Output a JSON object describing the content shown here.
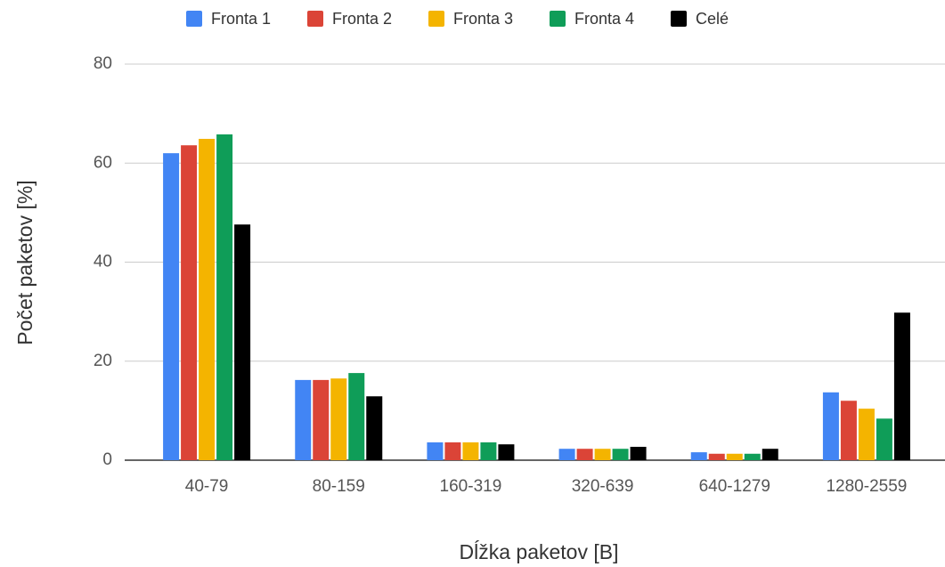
{
  "chart_data": {
    "type": "bar",
    "categories": [
      "40-79",
      "80-159",
      "160-319",
      "320-639",
      "640-1279",
      "1280-2559"
    ],
    "series": [
      {
        "name": "Fronta 1",
        "color": "#4285f4",
        "values": [
          62.0,
          16.2,
          3.6,
          2.3,
          1.6,
          13.7
        ]
      },
      {
        "name": "Fronta 2",
        "color": "#db4437",
        "values": [
          63.6,
          16.2,
          3.6,
          2.3,
          1.3,
          12.0
        ]
      },
      {
        "name": "Fronta 3",
        "color": "#f4b400",
        "values": [
          64.9,
          16.5,
          3.6,
          2.3,
          1.3,
          10.4
        ]
      },
      {
        "name": "Fronta 4",
        "color": "#0f9d58",
        "values": [
          65.8,
          17.6,
          3.6,
          2.3,
          1.3,
          8.4
        ]
      },
      {
        "name": "Celé",
        "color": "#000000",
        "values": [
          47.6,
          12.9,
          3.2,
          2.7,
          2.3,
          29.8
        ]
      }
    ],
    "x_label": "Dĺžka paketov [B]",
    "y_label": "Počet paketov [%]",
    "ylim": [
      0,
      80
    ],
    "yticks": [
      0,
      20,
      40,
      60,
      80
    ],
    "grid": true,
    "legend": "top"
  }
}
